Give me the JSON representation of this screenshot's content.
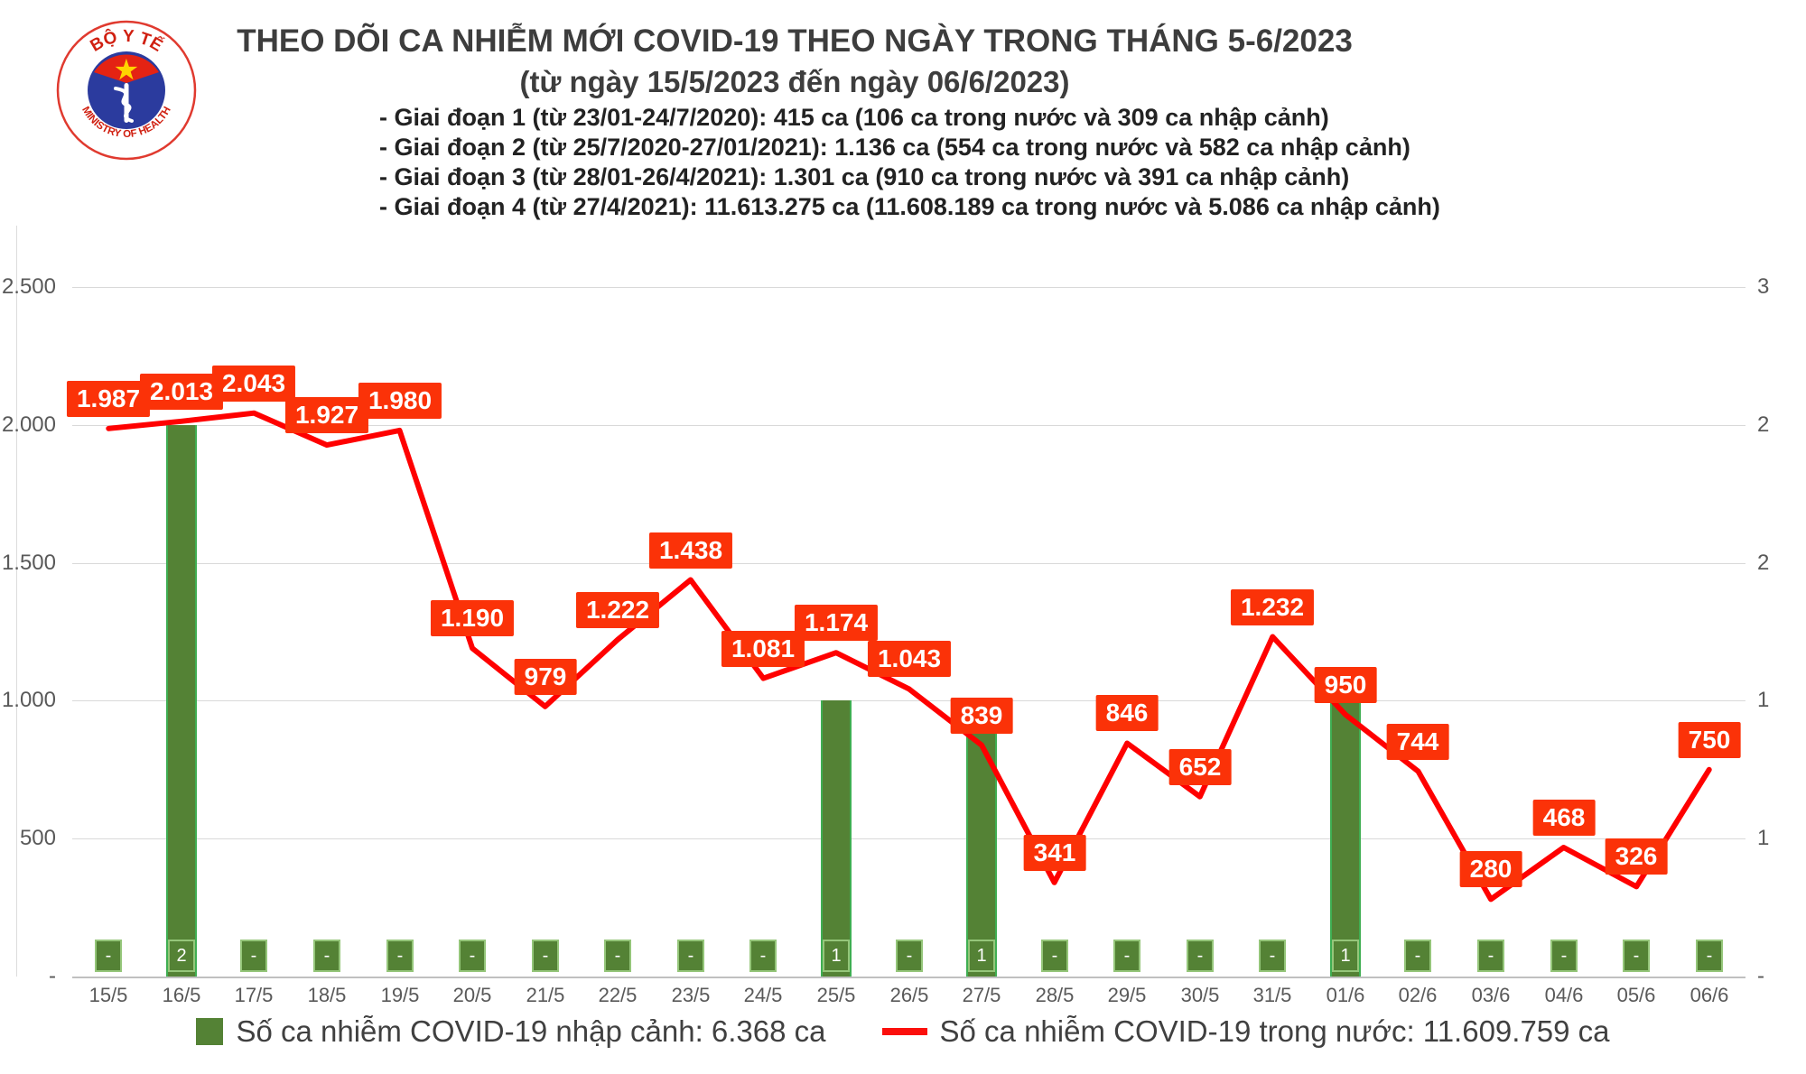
{
  "header": {
    "logo": {
      "top_text": "BỘ Y TẾ",
      "bottom_text": "MINISTRY OF HEALTH"
    },
    "title": "THEO DÕI CA NHIỄM MỚI COVID-19 THEO NGÀY TRONG THÁNG 5-6/2023",
    "subtitle": "(từ ngày 15/5/2023 đến ngày 06/6/2023)",
    "bullets": [
      "- Giai đoạn 1 (từ 23/01-24/7/2020): 415 ca (106 ca trong nước và 309 ca nhập cảnh)",
      "- Giai đoạn 2 (từ 25/7/2020-27/01/2021): 1.136 ca (554 ca trong nước và 582 ca nhập cảnh)",
      "- Giai đoạn 3 (từ 28/01-26/4/2021): 1.301 ca (910 ca trong nước và 391 ca nhập cảnh)",
      "- Giai đoạn 4 (từ 27/4/2021): 11.613.275 ca (11.608.189 ca trong nước và 5.086 ca nhập cảnh)"
    ]
  },
  "chart_data": {
    "type": "bar+line combo",
    "categories": [
      "15/5",
      "16/5",
      "17/5",
      "18/5",
      "19/5",
      "20/5",
      "21/5",
      "22/5",
      "23/5",
      "24/5",
      "25/5",
      "26/5",
      "27/5",
      "28/5",
      "29/5",
      "30/5",
      "31/5",
      "01/6",
      "02/6",
      "03/6",
      "04/6",
      "05/6",
      "06/6"
    ],
    "series": [
      {
        "name": "Số ca nhiễm COVID-19 nhập cảnh",
        "type": "bar",
        "axis": "right",
        "color": "#548235",
        "values": [
          0,
          2,
          0,
          0,
          0,
          0,
          0,
          0,
          0,
          0,
          1,
          0,
          1,
          0,
          0,
          0,
          0,
          1,
          0,
          0,
          0,
          0,
          0
        ],
        "labels": [
          "-",
          "2",
          "-",
          "-",
          "-",
          "-",
          "-",
          "-",
          "-",
          "-",
          "1",
          "-",
          "1",
          "-",
          "-",
          "-",
          "-",
          "1",
          "-",
          "-",
          "-",
          "-",
          "-"
        ]
      },
      {
        "name": "Số ca nhiễm COVID-19 trong nước",
        "type": "line",
        "axis": "left",
        "color": "#ff0000",
        "values": [
          1987,
          2013,
          2043,
          1927,
          1980,
          1190,
          979,
          1222,
          1438,
          1081,
          1174,
          1043,
          839,
          341,
          846,
          652,
          1232,
          950,
          744,
          280,
          468,
          326,
          750
        ],
        "labels": [
          "1.987",
          "2.013",
          "2.043",
          "1.927",
          "1.980",
          "1.190",
          "979",
          "1.222",
          "1.438",
          "1.081",
          "1.174",
          "1.043",
          "839",
          "341",
          "846",
          "652",
          "1.232",
          "950",
          "744",
          "280",
          "468",
          "326",
          "750"
        ]
      }
    ],
    "left_axis": {
      "min": 0,
      "max": 2500,
      "tick_labels_top_to_bottom": [
        "2.500",
        "2.000",
        "1.500",
        "1.000",
        "500",
        "-"
      ]
    },
    "right_axis": {
      "min": 0,
      "max": 2.5,
      "tick_labels_top_to_bottom": [
        "3",
        "2",
        "2",
        "1",
        "1",
        "-"
      ]
    },
    "grid": true,
    "legend_position": "bottom",
    "label_color": "#fb3208"
  },
  "legend": {
    "bar_label": "Số ca nhiễm COVID-19 nhập cảnh: 6.368 ca",
    "line_label": "Số ca nhiễm COVID-19 trong nước: 11.609.759 ca"
  }
}
